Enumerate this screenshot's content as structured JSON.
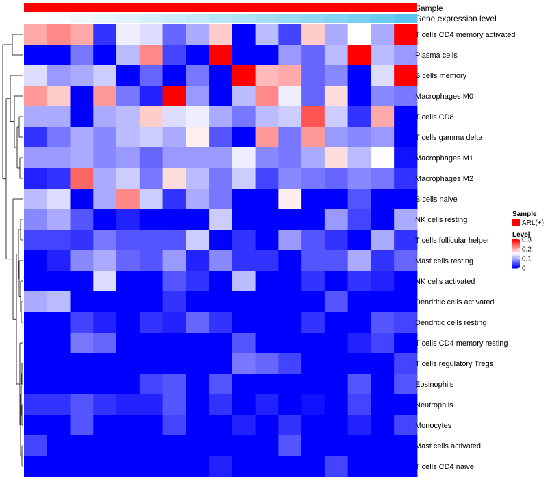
{
  "chart_data": {
    "type": "heatmap",
    "title": "",
    "annotations": [
      {
        "name": "Sample",
        "color": "#ff0000"
      },
      {
        "name": "Gene expression level",
        "gradient": [
          "#ffffff",
          "#5bc4ee"
        ]
      }
    ],
    "columns": 17,
    "gene_expression_level": [
      0.0,
      0.05,
      0.1,
      0.15,
      0.2,
      0.26,
      0.32,
      0.38,
      0.44,
      0.5,
      0.56,
      0.62,
      0.68,
      0.75,
      0.82,
      0.9,
      1.0
    ],
    "rows": [
      "T cells CD4 memory activated",
      "Plasma cells",
      "B cells memory",
      "Macrophages M0",
      "T cells CD8",
      "T cells gamma delta",
      "Macrophages M1",
      "Macrophages M2",
      "B cells naive",
      "NK cells resting",
      "T cells follicular helper",
      "Mast cells resting",
      "NK cells activated",
      "Dendritic cells activated",
      "Dendritic cells resting",
      "T cells CD4 memory resting",
      "T cells regulatory  Tregs",
      "Eosinophils",
      "Neutrophils",
      "Monocytes",
      "Mast cells activated",
      "T cells CD4 naive"
    ],
    "values": [
      [
        0.2,
        0.22,
        0.2,
        0.03,
        0.14,
        0.13,
        0.06,
        0.1,
        0.18,
        0.0,
        0.11,
        0.04,
        0.18,
        0.1,
        0.15,
        0.1,
        0.3
      ],
      [
        0.0,
        0.0,
        0.07,
        0.0,
        0.11,
        0.22,
        0.04,
        0.0,
        0.3,
        0.0,
        0.0,
        0.09,
        0.06,
        0.11,
        0.3,
        0.11,
        0.09
      ],
      [
        0.13,
        0.09,
        0.1,
        0.12,
        0.0,
        0.06,
        0.0,
        0.07,
        0.0,
        0.3,
        0.19,
        0.2,
        0.06,
        0.08,
        0.0,
        0.13,
        0.3
      ],
      [
        0.21,
        0.18,
        0.0,
        0.21,
        0.07,
        0.02,
        0.3,
        0.09,
        0.0,
        0.11,
        0.22,
        0.14,
        0.06,
        0.17,
        0.0,
        0.08,
        0.07
      ],
      [
        0.1,
        0.1,
        0.0,
        0.1,
        0.11,
        0.18,
        0.13,
        0.14,
        0.1,
        0.07,
        0.11,
        0.12,
        0.25,
        0.12,
        0.03,
        0.2,
        0.0
      ],
      [
        0.03,
        0.07,
        0.1,
        0.08,
        0.11,
        0.12,
        0.1,
        0.16,
        0.05,
        0.0,
        0.21,
        0.07,
        0.21,
        0.09,
        0.08,
        0.09,
        0.0
      ],
      [
        0.09,
        0.09,
        0.1,
        0.08,
        0.09,
        0.06,
        0.09,
        0.09,
        0.09,
        0.14,
        0.08,
        0.07,
        0.1,
        0.17,
        0.11,
        0.15,
        0.01
      ],
      [
        0.02,
        0.03,
        0.24,
        0.1,
        0.12,
        0.07,
        0.17,
        0.11,
        0.07,
        0.12,
        0.04,
        0.08,
        0.07,
        0.06,
        0.08,
        0.07,
        0.03
      ],
      [
        0.11,
        0.13,
        0.0,
        0.1,
        0.22,
        0.12,
        0.03,
        0.1,
        0.07,
        0.0,
        0.0,
        0.16,
        0.0,
        0.0,
        0.05,
        0.0,
        0.0
      ],
      [
        0.08,
        0.1,
        0.05,
        0.0,
        0.02,
        0.0,
        0.0,
        0.0,
        0.12,
        0.0,
        0.0,
        0.0,
        0.0,
        0.09,
        0.04,
        0.0,
        0.1
      ],
      [
        0.04,
        0.04,
        0.03,
        0.07,
        0.05,
        0.05,
        0.05,
        0.12,
        0.0,
        0.03,
        0.0,
        0.09,
        0.05,
        0.03,
        0.0,
        0.1,
        0.03
      ],
      [
        0.0,
        0.02,
        0.08,
        0.1,
        0.06,
        0.05,
        0.09,
        0.02,
        0.08,
        0.03,
        0.03,
        0.0,
        0.05,
        0.05,
        0.1,
        0.03,
        0.06
      ],
      [
        0.0,
        0.0,
        0.0,
        0.13,
        0.0,
        0.0,
        0.05,
        0.03,
        0.0,
        0.11,
        0.0,
        0.0,
        0.03,
        0.0,
        0.03,
        0.02,
        0.0
      ],
      [
        0.1,
        0.11,
        0.0,
        0.0,
        0.0,
        0.0,
        0.03,
        0.0,
        0.0,
        0.0,
        0.0,
        0.0,
        0.0,
        0.05,
        0.0,
        0.0,
        0.0
      ],
      [
        0.0,
        0.0,
        0.04,
        0.02,
        0.0,
        0.03,
        0.02,
        0.06,
        0.03,
        0.0,
        0.0,
        0.0,
        0.03,
        0.0,
        0.0,
        0.05,
        0.04
      ],
      [
        0.0,
        0.0,
        0.07,
        0.06,
        0.0,
        0.0,
        0.0,
        0.0,
        0.0,
        0.05,
        0.0,
        0.0,
        0.0,
        0.0,
        0.02,
        0.04,
        0.0
      ],
      [
        0.0,
        0.0,
        0.0,
        0.0,
        0.0,
        0.0,
        0.0,
        0.0,
        0.0,
        0.07,
        0.06,
        0.04,
        0.0,
        0.0,
        0.0,
        0.0,
        0.04
      ],
      [
        0.0,
        0.0,
        0.0,
        0.0,
        0.0,
        0.04,
        0.05,
        0.0,
        0.05,
        0.0,
        0.0,
        0.0,
        0.0,
        0.0,
        0.05,
        0.0,
        0.05
      ],
      [
        0.03,
        0.03,
        0.05,
        0.03,
        0.02,
        0.02,
        0.05,
        0.0,
        0.03,
        0.0,
        0.02,
        0.0,
        0.01,
        0.0,
        0.04,
        0.0,
        0.0
      ],
      [
        0.0,
        0.0,
        0.05,
        0.0,
        0.0,
        0.0,
        0.04,
        0.0,
        0.0,
        0.02,
        0.0,
        0.03,
        0.0,
        0.0,
        0.02,
        0.0,
        0.04
      ],
      [
        0.04,
        0.0,
        0.0,
        0.0,
        0.0,
        0.0,
        0.0,
        0.0,
        0.0,
        0.0,
        0.0,
        0.05,
        0.0,
        0.0,
        0.0,
        0.0,
        0.0
      ],
      [
        0.0,
        0.0,
        0.0,
        0.0,
        0.0,
        0.0,
        0.0,
        0.0,
        0.02,
        0.0,
        0.0,
        0.0,
        0.0,
        0.04,
        0.0,
        0.0,
        0.0
      ]
    ],
    "color_scale": {
      "min": 0,
      "max": 0.3,
      "colors": [
        "#0000ff",
        "#ffffff",
        "#ff0000"
      ]
    },
    "legend": {
      "sample_title": "Sample",
      "sample_label": "ARL(+)",
      "level_title": "Level",
      "level_ticks": [
        "0.3",
        "0.2",
        "0.1",
        "0"
      ],
      "level_tick_values": [
        0.3,
        0.2,
        0.1,
        0
      ],
      "placement": "right"
    },
    "dendrogram": "rows"
  }
}
